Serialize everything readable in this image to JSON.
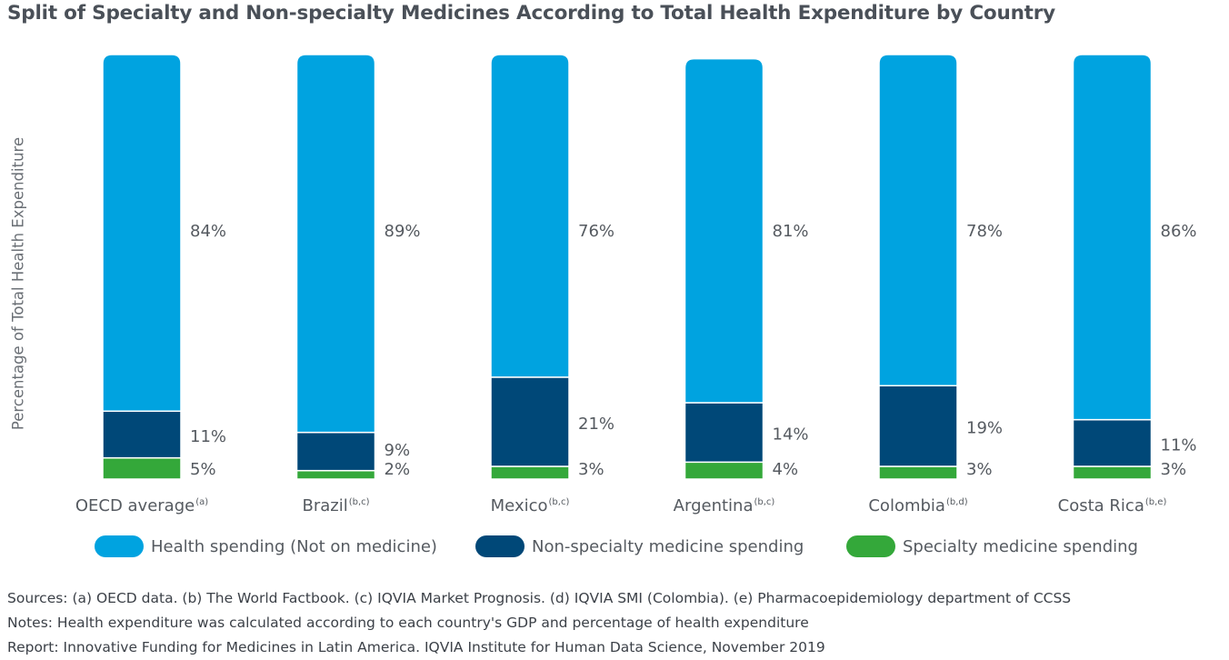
{
  "chart_data": {
    "type": "bar",
    "stacked": true,
    "title": "Split of Specialty and Non-specialty Medicines According to Total Health Expenditure by Country",
    "ylabel": "Percentage of Total Health Expenditure",
    "xlabel": "",
    "ylim": [
      0,
      100
    ],
    "grid": false,
    "legend_position": "bottom",
    "categories": [
      {
        "label": "OECD average",
        "note": "(a)"
      },
      {
        "label": "Brazil",
        "note": "(b,c)"
      },
      {
        "label": "Mexico",
        "note": "(b,c)"
      },
      {
        "label": "Argentina",
        "note": "(b,c)"
      },
      {
        "label": "Colombia",
        "note": "(b,d)"
      },
      {
        "label": "Costa Rica",
        "note": "(b,e)"
      }
    ],
    "series": [
      {
        "name": "Specialty medicine spending",
        "color": "#34a83a",
        "values": [
          5,
          2,
          3,
          4,
          3,
          3
        ],
        "labels": [
          "5%",
          "2%",
          "3%",
          "4%",
          "3%",
          "3%"
        ]
      },
      {
        "name": "Non-specialty medicine spending",
        "color": "#004878",
        "values": [
          11,
          9,
          21,
          14,
          19,
          11
        ],
        "labels": [
          "11%",
          "9%",
          "21%",
          "14%",
          "19%",
          "11%"
        ]
      },
      {
        "name": "Health spending (Not on medicine)",
        "color": "#00a3e0",
        "values": [
          84,
          89,
          76,
          81,
          78,
          86
        ],
        "labels": [
          "84%",
          "89%",
          "76%",
          "81%",
          "78%",
          "86%"
        ]
      }
    ],
    "legend_order": [
      2,
      1,
      0
    ]
  },
  "footer": {
    "sources": "Sources: (a) OECD data. (b) The World Factbook. (c) IQVIA Market Prognosis. (d) IQVIA SMI (Colombia). (e) Pharmacoepidemiology department of CCSS",
    "notes": "Notes: Health expenditure was calculated according to each country's GDP and percentage of health expenditure",
    "report": "Report: Innovative Funding for Medicines in Latin America. IQVIA Institute for Human Data Science, November 2019"
  }
}
